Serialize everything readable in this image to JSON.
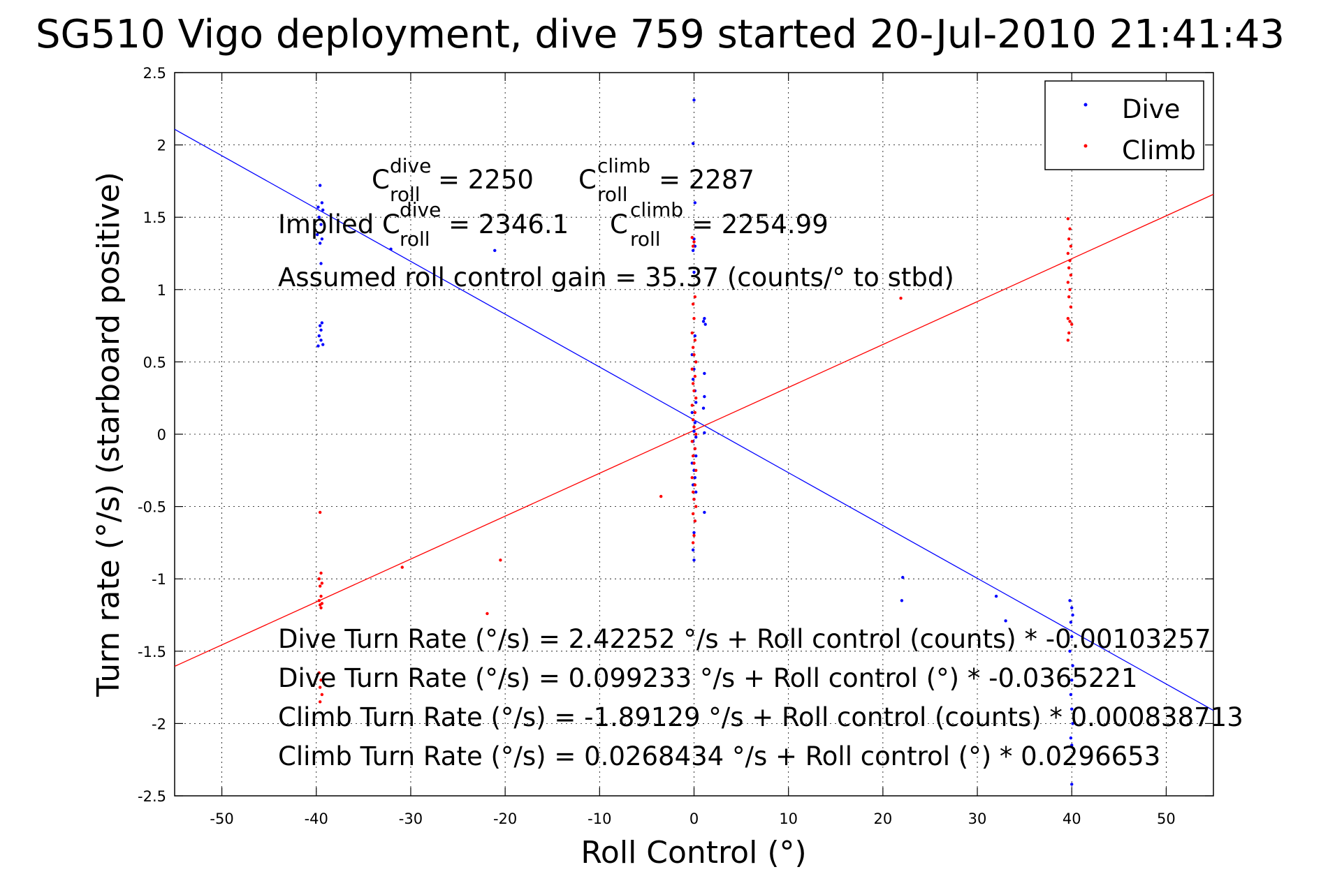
{
  "chart_data": {
    "type": "scatter",
    "title": "SG510 Vigo deployment, dive 759 started 20-Jul-2010 21:41:43",
    "xlabel": "Roll Control (°)",
    "ylabel": "Turn rate (°/s) (starboard positive)",
    "xlim": [
      -55,
      55
    ],
    "ylim": [
      -2.5,
      2.5
    ],
    "xticks": [
      -50,
      -40,
      -30,
      -20,
      -10,
      0,
      10,
      20,
      30,
      40,
      50
    ],
    "yticks": [
      -2.5,
      -2,
      -1.5,
      -1,
      -0.5,
      0,
      0.5,
      1,
      1.5,
      2,
      2.5
    ],
    "xtick_labels": [
      "-50",
      "-40",
      "-30",
      "-20",
      "-10",
      "0",
      "10",
      "20",
      "30",
      "40",
      "50"
    ],
    "ytick_labels": [
      "-2.5",
      "-2",
      "-1.5",
      "-1",
      "-0.5",
      "0",
      "0.5",
      "1",
      "1.5",
      "2",
      "2.5"
    ],
    "grid": true,
    "legend_position": "top-right",
    "series": [
      {
        "name": "Dive",
        "color": "#0000ff",
        "points": [
          [
            -39.6,
            1.72
          ],
          [
            -39.4,
            1.6
          ],
          [
            -39.8,
            1.57
          ],
          [
            -39.3,
            1.55
          ],
          [
            -39.7,
            1.5
          ],
          [
            -39.5,
            1.45
          ],
          [
            -39.9,
            1.38
          ],
          [
            -39.4,
            1.35
          ],
          [
            -39.6,
            1.32
          ],
          [
            -39.5,
            1.18
          ],
          [
            -39.4,
            0.77
          ],
          [
            -39.6,
            0.75
          ],
          [
            -39.5,
            0.72
          ],
          [
            -39.7,
            0.68
          ],
          [
            -39.5,
            0.65
          ],
          [
            -39.3,
            0.62
          ],
          [
            -39.8,
            0.61
          ],
          [
            -32.1,
            1.28
          ],
          [
            -21.1,
            1.27
          ],
          [
            0.0,
            2.31
          ],
          [
            -0.1,
            2.01
          ],
          [
            0.1,
            1.6
          ],
          [
            0.0,
            1.35
          ],
          [
            0.1,
            1.3
          ],
          [
            -0.1,
            1.27
          ],
          [
            0.0,
            1.12
          ],
          [
            1.1,
            0.8
          ],
          [
            1.0,
            0.78
          ],
          [
            1.2,
            0.76
          ],
          [
            0.1,
            0.68
          ],
          [
            -0.2,
            0.55
          ],
          [
            0.2,
            0.5
          ],
          [
            0.0,
            0.45
          ],
          [
            1.1,
            0.42
          ],
          [
            -0.1,
            0.38
          ],
          [
            0.1,
            0.3
          ],
          [
            0.2,
            0.22
          ],
          [
            1.1,
            0.26
          ],
          [
            1.0,
            0.18
          ],
          [
            -0.2,
            0.15
          ],
          [
            0.1,
            0.08
          ],
          [
            0.0,
            0.02
          ],
          [
            0.2,
            -0.02
          ],
          [
            1.1,
            0.01
          ],
          [
            -0.1,
            -0.05
          ],
          [
            0.1,
            -0.1
          ],
          [
            0.2,
            -0.15
          ],
          [
            -0.2,
            -0.2
          ],
          [
            0.0,
            -0.25
          ],
          [
            0.1,
            -0.3
          ],
          [
            -0.1,
            -0.35
          ],
          [
            0.2,
            -0.4
          ],
          [
            0.0,
            -0.45
          ],
          [
            1.1,
            -0.54
          ],
          [
            0.1,
            -0.6
          ],
          [
            0.0,
            -0.68
          ],
          [
            -0.1,
            -0.8
          ],
          [
            0.0,
            -0.87
          ],
          [
            22.1,
            -0.99
          ],
          [
            22.0,
            -1.15
          ],
          [
            32.0,
            -1.12
          ],
          [
            33.0,
            -1.29
          ],
          [
            39.8,
            -1.15
          ],
          [
            40.0,
            -1.2
          ],
          [
            40.1,
            -1.25
          ],
          [
            39.9,
            -1.3
          ],
          [
            40.0,
            -1.4
          ],
          [
            39.8,
            -1.5
          ],
          [
            40.1,
            -1.6
          ],
          [
            40.0,
            -1.7
          ],
          [
            39.9,
            -1.8
          ],
          [
            40.0,
            -1.9
          ],
          [
            40.1,
            -2.0
          ],
          [
            39.9,
            -2.1
          ],
          [
            40.0,
            -2.15
          ],
          [
            40.0,
            -2.42
          ]
        ]
      },
      {
        "name": "Climb",
        "color": "#ff0000",
        "points": [
          [
            -39.6,
            -0.54
          ],
          [
            -39.5,
            -0.96
          ],
          [
            -39.7,
            -1.0
          ],
          [
            -39.4,
            -1.03
          ],
          [
            -39.6,
            -1.05
          ],
          [
            -39.5,
            -1.12
          ],
          [
            -39.7,
            -1.15
          ],
          [
            -39.4,
            -1.17
          ],
          [
            -39.6,
            -1.18
          ],
          [
            -39.5,
            -1.2
          ],
          [
            -39.7,
            -1.65
          ],
          [
            -39.5,
            -1.7
          ],
          [
            -39.6,
            -1.75
          ],
          [
            -39.4,
            -1.8
          ],
          [
            -39.6,
            -1.85
          ],
          [
            -30.9,
            -0.92
          ],
          [
            -20.5,
            -0.87
          ],
          [
            -21.9,
            -1.24
          ],
          [
            -3.5,
            -0.43
          ],
          [
            -0.2,
            1.36
          ],
          [
            0.0,
            1.33
          ],
          [
            -0.1,
            1.3
          ],
          [
            0.1,
            0.95
          ],
          [
            -0.1,
            0.9
          ],
          [
            0.0,
            0.8
          ],
          [
            -0.2,
            0.7
          ],
          [
            0.1,
            0.65
          ],
          [
            -0.1,
            0.6
          ],
          [
            0.0,
            0.55
          ],
          [
            0.2,
            0.5
          ],
          [
            -0.2,
            0.45
          ],
          [
            0.1,
            0.4
          ],
          [
            -0.1,
            0.35
          ],
          [
            0.0,
            0.3
          ],
          [
            0.2,
            0.25
          ],
          [
            -0.2,
            0.2
          ],
          [
            0.1,
            0.15
          ],
          [
            -0.1,
            0.1
          ],
          [
            0.0,
            0.05
          ],
          [
            0.2,
            0.0
          ],
          [
            -0.2,
            -0.05
          ],
          [
            0.1,
            -0.1
          ],
          [
            -0.1,
            -0.15
          ],
          [
            0.0,
            -0.2
          ],
          [
            0.2,
            -0.25
          ],
          [
            -0.2,
            -0.3
          ],
          [
            0.1,
            -0.35
          ],
          [
            -0.1,
            -0.4
          ],
          [
            0.0,
            -0.45
          ],
          [
            0.2,
            -0.5
          ],
          [
            -0.1,
            -0.55
          ],
          [
            0.1,
            -0.6
          ],
          [
            0.0,
            -0.7
          ],
          [
            -0.1,
            -0.75
          ],
          [
            21.9,
            0.94
          ],
          [
            39.6,
            1.49
          ],
          [
            39.8,
            1.42
          ],
          [
            39.7,
            1.35
          ],
          [
            39.9,
            1.3
          ],
          [
            39.6,
            1.25
          ],
          [
            39.8,
            1.2
          ],
          [
            39.7,
            1.15
          ],
          [
            39.9,
            1.1
          ],
          [
            39.6,
            1.05
          ],
          [
            39.8,
            1.0
          ],
          [
            39.7,
            0.95
          ],
          [
            39.9,
            0.88
          ],
          [
            39.6,
            0.8
          ],
          [
            39.8,
            0.78
          ],
          [
            40.0,
            0.76
          ],
          [
            39.7,
            0.7
          ],
          [
            39.6,
            0.65
          ]
        ]
      }
    ],
    "fit_lines": [
      {
        "series": "Dive",
        "intercept": 0.099233,
        "slope": -0.0365221
      },
      {
        "series": "Climb",
        "intercept": 0.0268434,
        "slope": 0.0296653
      }
    ],
    "annotations": {
      "c_dive_base": "C",
      "c_dive_sup": "dive",
      "c_dive_sub": "roll",
      "c_dive_value": "= 2250",
      "c_climb_base": "C",
      "c_climb_sup": "climb",
      "c_climb_sub": "roll",
      "c_climb_value": "= 2287",
      "implied_prefix": "Implied C",
      "implied_dive_sup": "dive",
      "implied_dive_sub": "roll",
      "implied_dive_value": "= 2346.1",
      "implied_climb_base": "C",
      "implied_climb_sup": "climb",
      "implied_climb_sub": "roll",
      "implied_climb_value": "= 2254.99",
      "gain": "Assumed roll control gain = 35.37 (counts/° to stbd)",
      "eq1": "Dive Turn Rate (°/s) = 2.42252 °/s + Roll control (counts) * -0.00103257",
      "eq2": "Dive Turn Rate (°/s) = 0.099233 °/s + Roll control (°) * -0.0365221",
      "eq3": "Climb Turn Rate (°/s) = -1.89129 °/s + Roll control (counts) * 0.000838713",
      "eq4": "Climb Turn Rate (°/s) = 0.0268434 °/s + Roll control (°) * 0.0296653"
    }
  }
}
